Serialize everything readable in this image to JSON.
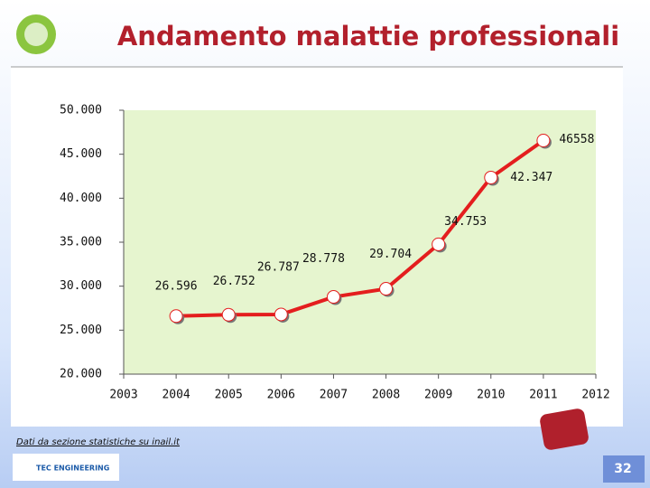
{
  "title": "Andamento malattie professionali",
  "chart_data": {
    "type": "line",
    "x": [
      2004,
      2005,
      2006,
      2007,
      2008,
      2009,
      2010,
      2011
    ],
    "series": [
      {
        "color": "#e41e1e",
        "values": [
          26596,
          26752,
          26787,
          28778,
          29704,
          34753,
          42347,
          46558
        ],
        "value_labels": [
          "26.596",
          "26.752",
          "26.787",
          "28.778",
          "29.704",
          "34.753",
          "42.347",
          "46558"
        ]
      }
    ],
    "xlim": [
      2003,
      2012
    ],
    "xticks": [
      2003,
      2004,
      2005,
      2006,
      2007,
      2008,
      2009,
      2010,
      2011,
      2012
    ],
    "ylim": [
      20000,
      50000
    ],
    "yticks": [
      {
        "value": 20000,
        "label": "20.000"
      },
      {
        "value": 25000,
        "label": "25.000"
      },
      {
        "value": 30000,
        "label": "30.000"
      },
      {
        "value": 35000,
        "label": "35.000"
      },
      {
        "value": 40000,
        "label": "40.000"
      },
      {
        "value": 45000,
        "label": "45.000"
      },
      {
        "value": 50000,
        "label": "50.000"
      }
    ],
    "plot_background": "#e6f5cf"
  },
  "footnote": "Dati da sezione statistiche su inail.it",
  "logo_text": "TEC ENGINEERING",
  "page_number": "32"
}
